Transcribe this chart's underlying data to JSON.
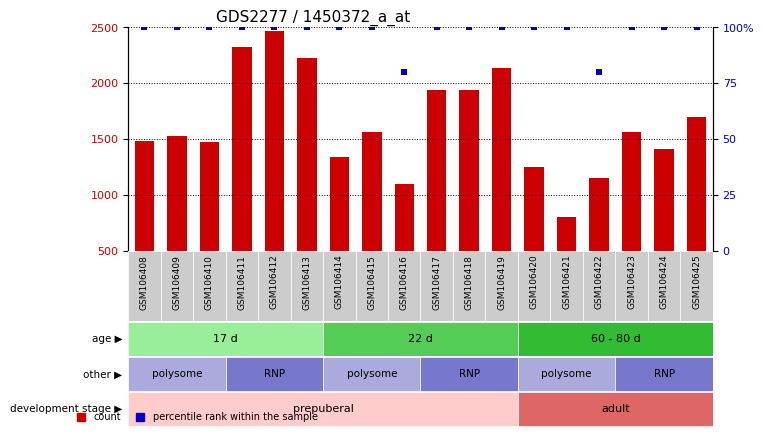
{
  "title": "GDS2277 / 1450372_a_at",
  "samples": [
    "GSM106408",
    "GSM106409",
    "GSM106410",
    "GSM106411",
    "GSM106412",
    "GSM106413",
    "GSM106414",
    "GSM106415",
    "GSM106416",
    "GSM106417",
    "GSM106418",
    "GSM106419",
    "GSM106420",
    "GSM106421",
    "GSM106422",
    "GSM106423",
    "GSM106424",
    "GSM106425"
  ],
  "counts": [
    1480,
    1530,
    1470,
    2320,
    2470,
    2230,
    1340,
    1560,
    1100,
    1940,
    1940,
    2140,
    1250,
    800,
    1150,
    1560,
    1410,
    1700
  ],
  "percentile_ranks": [
    100,
    100,
    100,
    100,
    100,
    100,
    100,
    100,
    80,
    100,
    100,
    100,
    100,
    100,
    80,
    100,
    100,
    100
  ],
  "bar_color": "#cc0000",
  "percentile_color": "#0000cc",
  "ylim_left": [
    500,
    2500
  ],
  "ylim_right": [
    0,
    100
  ],
  "yticks_left": [
    500,
    1000,
    1500,
    2000,
    2500
  ],
  "yticks_right": [
    0,
    25,
    50,
    75,
    100
  ],
  "age_groups": [
    {
      "label": "17 d",
      "start": 0,
      "end": 5,
      "color": "#99ee99"
    },
    {
      "label": "22 d",
      "start": 6,
      "end": 11,
      "color": "#55cc55"
    },
    {
      "label": "60 - 80 d",
      "start": 12,
      "end": 17,
      "color": "#33bb33"
    }
  ],
  "other_groups": [
    {
      "label": "polysome",
      "start": 0,
      "end": 2,
      "color": "#aaaadd"
    },
    {
      "label": "RNP",
      "start": 3,
      "end": 5,
      "color": "#7777cc"
    },
    {
      "label": "polysome",
      "start": 6,
      "end": 8,
      "color": "#aaaadd"
    },
    {
      "label": "RNP",
      "start": 9,
      "end": 11,
      "color": "#7777cc"
    },
    {
      "label": "polysome",
      "start": 12,
      "end": 14,
      "color": "#aaaadd"
    },
    {
      "label": "RNP",
      "start": 15,
      "end": 17,
      "color": "#7777cc"
    }
  ],
  "dev_groups": [
    {
      "label": "prepuberal",
      "start": 0,
      "end": 11,
      "color": "#ffcccc"
    },
    {
      "label": "adult",
      "start": 12,
      "end": 17,
      "color": "#dd6666"
    }
  ],
  "row_labels": [
    "age",
    "other",
    "development stage"
  ],
  "legend_count_label": "count",
  "legend_percentile_label": "percentile rank within the sample",
  "background_color": "#ffffff",
  "tick_label_bg": "#dddddd"
}
